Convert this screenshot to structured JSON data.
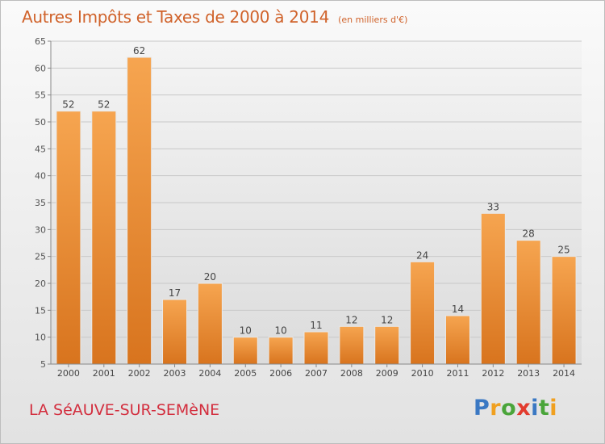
{
  "header": {
    "title": "Autres Impôts et Taxes de 2000 à 2014",
    "subtitle": "(en milliers d'€)"
  },
  "footer": {
    "city": "LA SéAUVE-SUR-SEMèNE",
    "logo_letters": [
      "P",
      "r",
      "o",
      "x",
      "i",
      "t",
      "i"
    ],
    "logo_colors": [
      "#3a78c3",
      "#f0a020",
      "#4aa53a",
      "#e23b2e",
      "#3a78c3",
      "#4aa53a",
      "#f0a020"
    ]
  },
  "chart_data": {
    "type": "bar",
    "categories": [
      "2000",
      "2001",
      "2002",
      "2003",
      "2004",
      "2005",
      "2006",
      "2007",
      "2008",
      "2009",
      "2010",
      "2011",
      "2012",
      "2013",
      "2014"
    ],
    "values": [
      52,
      52,
      62,
      17,
      20,
      10,
      10,
      11,
      12,
      12,
      24,
      14,
      33,
      28,
      25
    ],
    "ylim": [
      5,
      65
    ],
    "yticks": [
      5,
      10,
      15,
      20,
      25,
      30,
      35,
      40,
      45,
      50,
      55,
      60,
      65
    ],
    "grid": true,
    "bar_color": "#f29a3c"
  }
}
